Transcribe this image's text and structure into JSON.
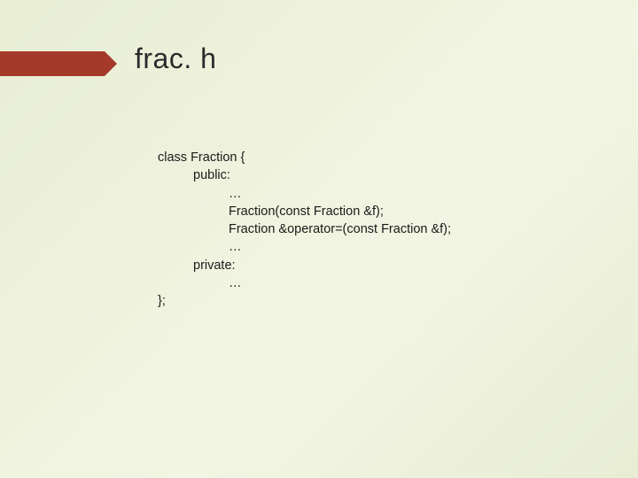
{
  "slide": {
    "title": "frac. h",
    "accent_color": "#a63a2a",
    "background_gradient": [
      "#e8edd4",
      "#eef2dc",
      "#f2f5e3",
      "#e8edd4"
    ],
    "title_fontsize": 32,
    "code_fontsize": 14.5,
    "text_color": "#1a1a1a"
  },
  "code": {
    "lines": [
      {
        "text": "class Fraction {",
        "indent": 0
      },
      {
        "text": "public:",
        "indent": 1
      },
      {
        "text": "…",
        "indent": 2
      },
      {
        "text": "Fraction(const Fraction &f);",
        "indent": 2
      },
      {
        "text": "Fraction &operator=(const Fraction &f);",
        "indent": 2
      },
      {
        "text": "…",
        "indent": 2
      },
      {
        "text": "private:",
        "indent": 1
      },
      {
        "text": "…",
        "indent": 2
      },
      {
        "text": "};",
        "indent": 0
      }
    ],
    "l0": "class Fraction {",
    "l1": "public:",
    "l2": "…",
    "l3": "Fraction(const Fraction &f);",
    "l4": "Fraction &operator=(const Fraction &f);",
    "l5": "…",
    "l6": "private:",
    "l7": "…",
    "l8": "};"
  }
}
